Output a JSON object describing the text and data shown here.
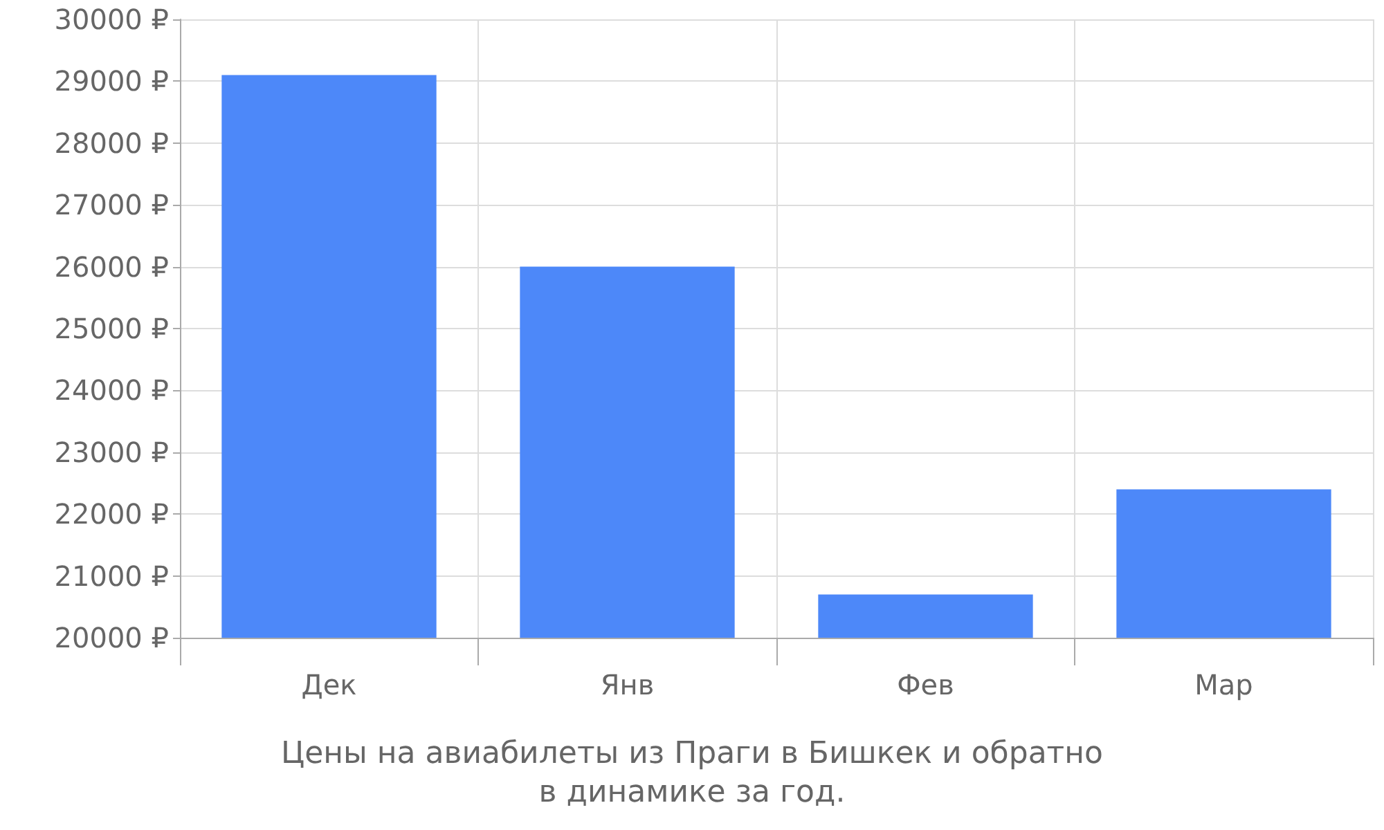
{
  "chart_data": {
    "type": "bar",
    "title": "Цены на авиабилеты из Праги в Бишкек и обратно\nв динамике за год.",
    "categories": [
      "Дек",
      "Янв",
      "Фев",
      "Мар"
    ],
    "values": [
      29100,
      26000,
      20700,
      22400
    ],
    "color": "#4d88f9",
    "ylim": [
      20000,
      30000
    ],
    "yticks": [
      {
        "value": 20000,
        "label": "20000 ₽"
      },
      {
        "value": 21000,
        "label": "21000 ₽"
      },
      {
        "value": 22000,
        "label": "22000 ₽"
      },
      {
        "value": 23000,
        "label": "23000 ₽"
      },
      {
        "value": 24000,
        "label": "24000 ₽"
      },
      {
        "value": 25000,
        "label": "25000 ₽"
      },
      {
        "value": 26000,
        "label": "26000 ₽"
      },
      {
        "value": 27000,
        "label": "27000 ₽"
      },
      {
        "value": 28000,
        "label": "28000 ₽"
      },
      {
        "value": 29000,
        "label": "29000 ₽"
      },
      {
        "value": 30000,
        "label": "30000 ₽"
      }
    ],
    "grid": true
  }
}
